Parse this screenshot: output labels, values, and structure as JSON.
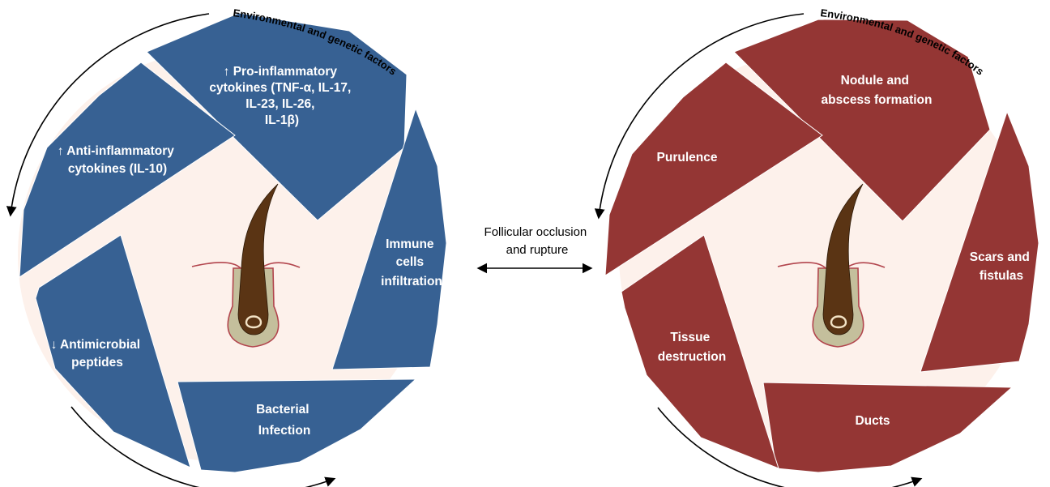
{
  "colors": {
    "left_segments": "#376193",
    "right_segments": "#943634",
    "center_fill": "#fdf1eb",
    "hair_shaft": "#5a3414",
    "hair_bulb": "#4a2a10",
    "follicle_sheath": "#c4bf9c",
    "skin_line": "#b2454d",
    "arrows": "#000000"
  },
  "left_cycle": {
    "ring_label": "Environmental and genetic factors",
    "segments": [
      {
        "id": "pro-inflammatory",
        "lines": [
          "↑ Pro-inflammatory",
          "cytokines (TNF-α, IL-17,",
          "IL-23, IL-26,",
          "IL-1β)"
        ]
      },
      {
        "id": "immune-cells",
        "lines": [
          "Immune",
          "cells",
          "infiltration"
        ]
      },
      {
        "id": "bacterial-infection",
        "lines": [
          "Bacterial",
          "Infection"
        ]
      },
      {
        "id": "antimicrobial",
        "lines": [
          "↓ Antimicrobial",
          "peptides"
        ]
      },
      {
        "id": "anti-inflammatory",
        "lines": [
          "↑ Anti-inflammatory",
          "cytokines (IL-10)"
        ]
      }
    ]
  },
  "right_cycle": {
    "ring_label": "Environmental and genetic factors",
    "segments": [
      {
        "id": "nodule",
        "lines": [
          "Nodule and",
          "abscess formation"
        ]
      },
      {
        "id": "scars",
        "lines": [
          "Scars and",
          "fistulas"
        ]
      },
      {
        "id": "ducts",
        "lines": [
          "Ducts"
        ]
      },
      {
        "id": "tissue",
        "lines": [
          "Tissue",
          "destruction"
        ]
      },
      {
        "id": "purulence",
        "lines": [
          "Purulence"
        ]
      }
    ]
  },
  "center": {
    "lines": [
      "Follicular occlusion",
      "and rupture"
    ]
  }
}
